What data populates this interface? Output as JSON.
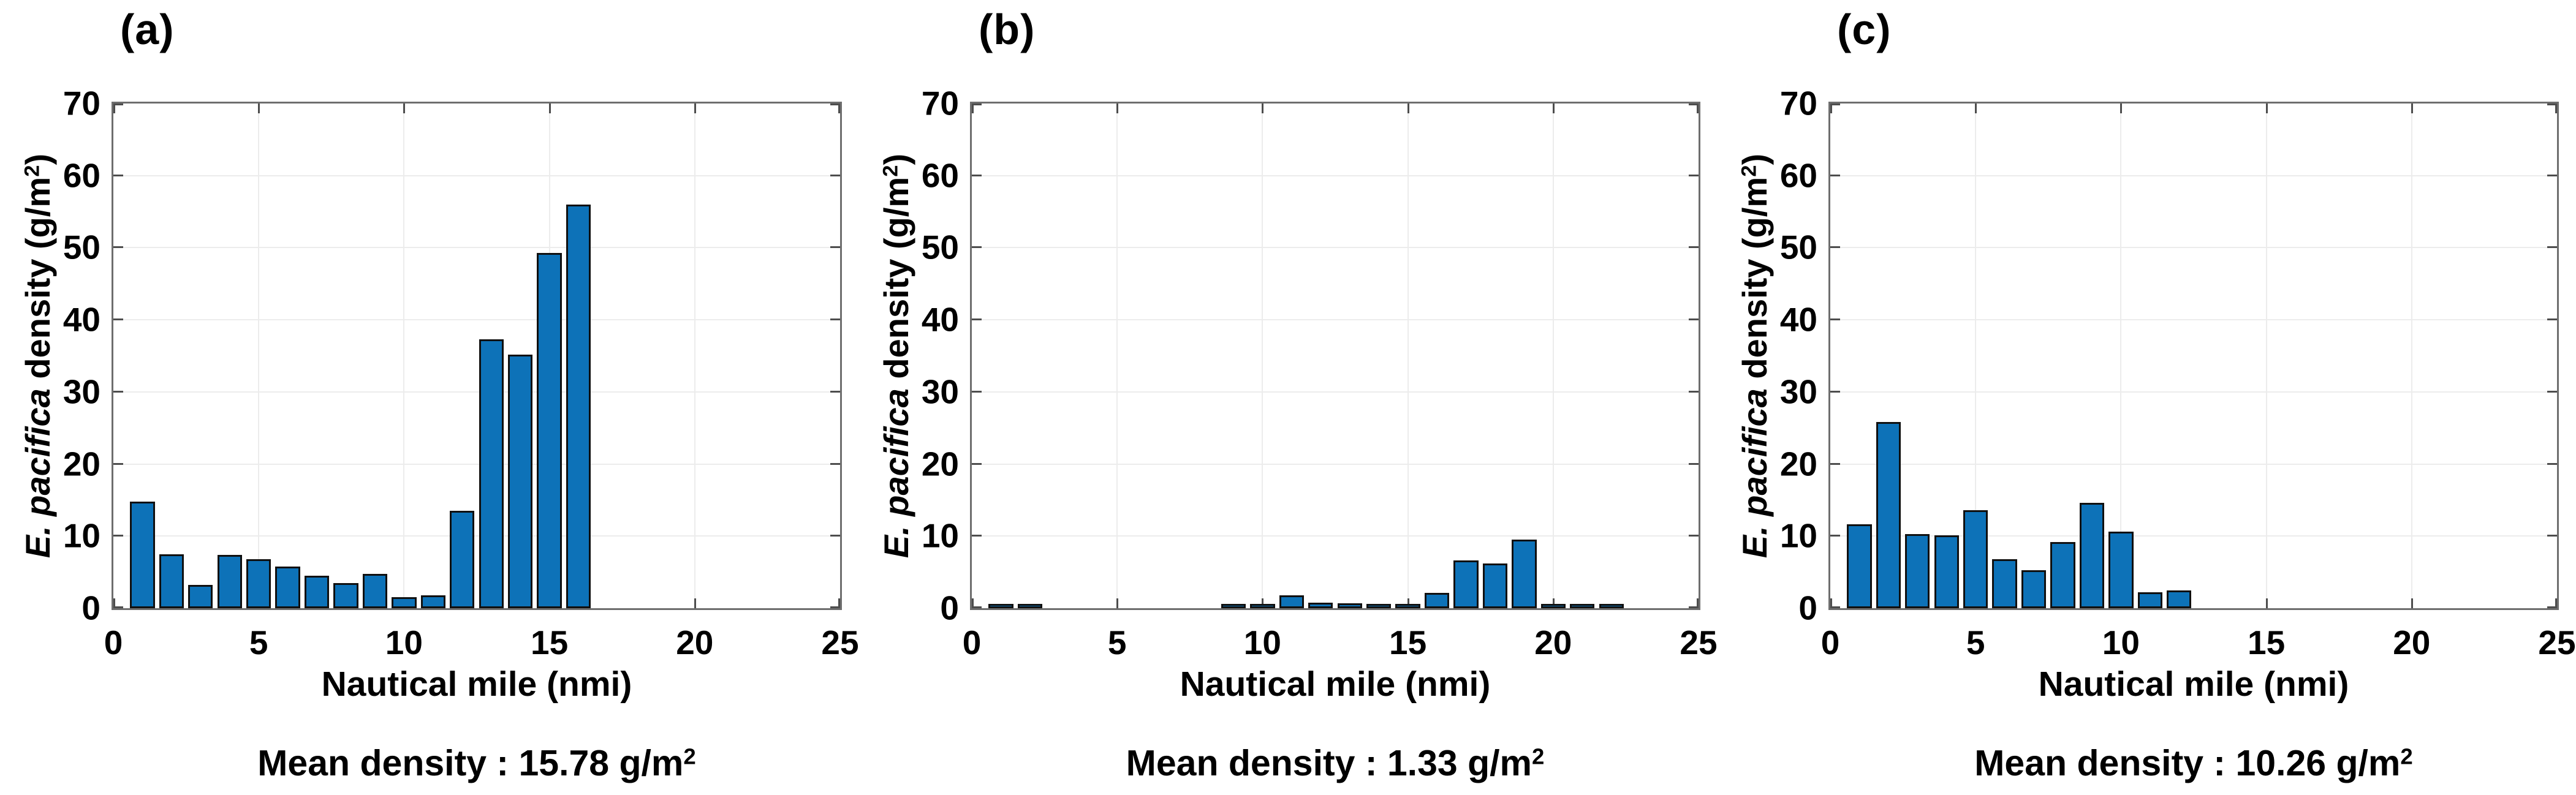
{
  "figure_caption_colors": {
    "bar_fill": "#0d72b8",
    "bar_edge": "#101010",
    "grid": "#ececec",
    "axis_box": "#6e6e6e",
    "text": "#000000"
  },
  "chart_data": [
    {
      "panel": "a",
      "title": "(a)",
      "type": "bar",
      "x": [
        1,
        2,
        3,
        4,
        5,
        6,
        7,
        8,
        9,
        10,
        11,
        12,
        13,
        14,
        15,
        16
      ],
      "values": [
        14.8,
        7.5,
        3.2,
        7.4,
        6.8,
        5.8,
        4.5,
        3.5,
        4.8,
        1.5,
        1.8,
        13.5,
        37.3,
        35.2,
        49.3,
        56.0
      ],
      "bar_width": 0.85,
      "xlabel": "Nautical mile (nmi)",
      "ylabel": "E. pacifica density (g/m2)",
      "ylabel_parts": {
        "italic": "E. pacifica",
        "rest": " density (g/m",
        "sup": "2",
        "close": ")"
      },
      "xlim": [
        0,
        25
      ],
      "ylim": [
        0,
        70
      ],
      "xticks": [
        0,
        5,
        10,
        15,
        20,
        25
      ],
      "yticks": [
        0,
        10,
        20,
        30,
        40,
        50,
        60,
        70
      ],
      "grid": true,
      "legend": null,
      "mean_density": 15.78,
      "mean_label": {
        "text": "Mean density : 15.78 g/m",
        "sup": "2"
      }
    },
    {
      "panel": "b",
      "title": "(b)",
      "type": "bar",
      "x": [
        1,
        2,
        9,
        10,
        11,
        12,
        13,
        14,
        15,
        16,
        17,
        18,
        19,
        20,
        21,
        22
      ],
      "values": [
        0.1,
        0.15,
        0.2,
        0.35,
        1.8,
        0.8,
        0.65,
        0.2,
        0.1,
        2.1,
        6.6,
        6.2,
        9.5,
        0.5,
        0.1,
        0.2
      ],
      "bar_width": 0.85,
      "xlabel": "Nautical mile (nmi)",
      "ylabel": "E. pacifica density (g/m2)",
      "ylabel_parts": {
        "italic": "E. pacifica",
        "rest": " density (g/m",
        "sup": "2",
        "close": ")"
      },
      "xlim": [
        0,
        25
      ],
      "ylim": [
        0,
        70
      ],
      "xticks": [
        0,
        5,
        10,
        15,
        20,
        25
      ],
      "yticks": [
        0,
        10,
        20,
        30,
        40,
        50,
        60,
        70
      ],
      "grid": true,
      "legend": null,
      "mean_density": 1.33,
      "mean_label": {
        "text": "Mean density : 1.33 g/m",
        "sup": "2"
      }
    },
    {
      "panel": "c",
      "title": "(c)",
      "type": "bar",
      "x": [
        1,
        2,
        3,
        4,
        5,
        6,
        7,
        8,
        9,
        10,
        11,
        12
      ],
      "values": [
        11.6,
        25.8,
        10.3,
        10.1,
        13.6,
        6.8,
        5.3,
        9.2,
        14.6,
        10.6,
        2.2,
        2.5
      ],
      "bar_width": 0.85,
      "xlabel": "Nautical mile (nmi)",
      "ylabel": "E. pacifica density (g/m2)",
      "ylabel_parts": {
        "italic": "E. pacifica",
        "rest": " density (g/m",
        "sup": "2",
        "close": ")"
      },
      "xlim": [
        0,
        25
      ],
      "ylim": [
        0,
        70
      ],
      "xticks": [
        0,
        5,
        10,
        15,
        20,
        25
      ],
      "yticks": [
        0,
        10,
        20,
        30,
        40,
        50,
        60,
        70
      ],
      "grid": true,
      "legend": null,
      "mean_density": 10.26,
      "mean_label": {
        "text": "Mean density : 10.26 g/m",
        "sup": "2"
      }
    }
  ]
}
